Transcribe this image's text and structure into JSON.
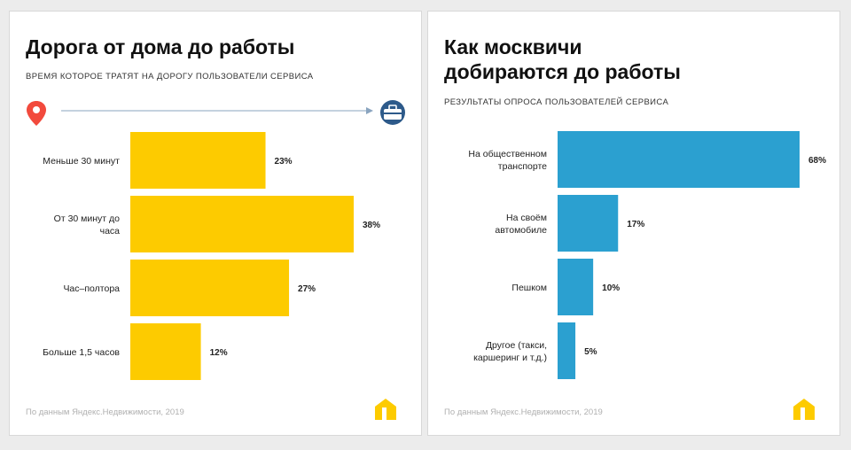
{
  "charts": [
    {
      "title": "Дорога от дома до работы",
      "subtitle": "Время которое тратят на дорогу пользователи сервиса",
      "source": "По данным Яндекс.Недвижимости, 2019"
    },
    {
      "title": "Как москвичи добираются до работы",
      "subtitle": "Результаты опроса пользователей сервиса",
      "source": "По данным Яндекс.Недвижимости, 2019"
    }
  ],
  "chart_data": [
    {
      "type": "bar",
      "orientation": "horizontal",
      "title": "Дорога от дома до работы",
      "subtitle": "Время которое тратят на дорогу пользователи сервиса",
      "categories": [
        [
          "Меньше 30 минут"
        ],
        [
          "От 30 минут до",
          "часа"
        ],
        [
          "Час–полтора"
        ],
        [
          "Больше 1,5 часов"
        ]
      ],
      "values": [
        23,
        38,
        27,
        12
      ],
      "value_labels": [
        "23%",
        "38%",
        "27%",
        "12%"
      ],
      "color": "#fdcb00",
      "grid": false
    },
    {
      "type": "bar",
      "orientation": "horizontal",
      "title": "Как москвичи добираются до работы",
      "subtitle": "Результаты опроса пользователей сервиса",
      "categories": [
        [
          "На общественном",
          "транспорте"
        ],
        [
          "На своём",
          "автомобиле"
        ],
        [
          "Пешком"
        ],
        [
          "Другое (такси,",
          "каршеринг и т.д.)"
        ]
      ],
      "values": [
        68,
        17,
        10,
        5
      ],
      "value_labels": [
        "68%",
        "17%",
        "10%",
        "5%"
      ],
      "color": "#2ba0d0",
      "grid": false
    }
  ],
  "icons": {
    "origin": "map-pin-icon",
    "destination": "briefcase-icon",
    "brand": "yandex-realty-logo-icon"
  },
  "colors": {
    "pin": "#f24a3d",
    "briefcase": "#2d5a8a",
    "logo": "#fdcb00"
  }
}
